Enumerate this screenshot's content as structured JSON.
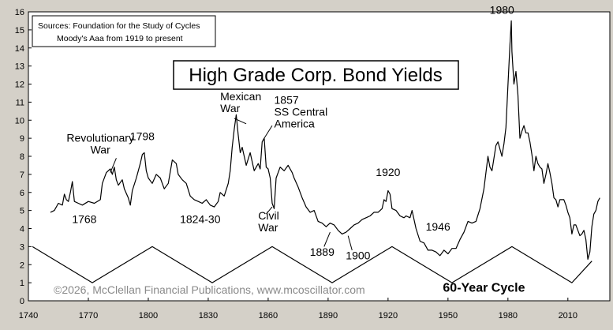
{
  "chart_data": {
    "type": "line",
    "title": "High Grade Corp. Bond Yields",
    "sources_box": {
      "line1": "Sources: Foundation for the Study of Cycles",
      "line2": "Moody's Aaa from 1919 to present"
    },
    "copyright": "©2026, McClellan Financial Publications, www.mcoscillator.com",
    "xlim": [
      1740,
      2031
    ],
    "ylim": [
      0,
      16
    ],
    "x_ticks": [
      1740,
      1770,
      1800,
      1830,
      1860,
      1890,
      1920,
      1950,
      1980,
      2010
    ],
    "y_ticks": [
      0,
      1,
      2,
      3,
      4,
      5,
      6,
      7,
      8,
      9,
      10,
      11,
      12,
      13,
      14,
      15,
      16
    ],
    "grid": false,
    "series": [
      {
        "color": "#000000",
        "points": [
          [
            1751,
            4.9
          ],
          [
            1753,
            5.0
          ],
          [
            1755,
            5.4
          ],
          [
            1757,
            5.3
          ],
          [
            1758,
            5.9
          ],
          [
            1759,
            5.6
          ],
          [
            1760,
            5.5
          ],
          [
            1761,
            6.0
          ],
          [
            1762,
            6.6
          ],
          [
            1763,
            5.5
          ],
          [
            1765,
            5.4
          ],
          [
            1767,
            5.3
          ],
          [
            1770,
            5.5
          ],
          [
            1773,
            5.4
          ],
          [
            1776,
            5.6
          ],
          [
            1777,
            6.5
          ],
          [
            1779,
            7.1
          ],
          [
            1781,
            7.3
          ],
          [
            1782,
            7.0
          ],
          [
            1783,
            7.4
          ],
          [
            1784,
            6.7
          ],
          [
            1785,
            6.4
          ],
          [
            1787,
            6.7
          ],
          [
            1788,
            6.2
          ],
          [
            1790,
            5.7
          ],
          [
            1791,
            5.3
          ],
          [
            1792,
            6.1
          ],
          [
            1794,
            6.8
          ],
          [
            1796,
            7.6
          ],
          [
            1797,
            8.1
          ],
          [
            1798,
            8.2
          ],
          [
            1799,
            7.2
          ],
          [
            1800,
            6.8
          ],
          [
            1802,
            6.5
          ],
          [
            1804,
            7.0
          ],
          [
            1806,
            6.8
          ],
          [
            1808,
            6.2
          ],
          [
            1810,
            6.5
          ],
          [
            1812,
            7.8
          ],
          [
            1814,
            7.6
          ],
          [
            1815,
            7.0
          ],
          [
            1817,
            6.7
          ],
          [
            1819,
            6.5
          ],
          [
            1821,
            5.8
          ],
          [
            1823,
            5.6
          ],
          [
            1825,
            5.5
          ],
          [
            1827,
            5.4
          ],
          [
            1829,
            5.6
          ],
          [
            1831,
            5.3
          ],
          [
            1833,
            5.2
          ],
          [
            1835,
            5.5
          ],
          [
            1836,
            6.0
          ],
          [
            1838,
            5.8
          ],
          [
            1840,
            6.5
          ],
          [
            1841,
            7.2
          ],
          [
            1842,
            8.5
          ],
          [
            1843,
            9.5
          ],
          [
            1844,
            10.3
          ],
          [
            1845,
            9.2
          ],
          [
            1846,
            8.2
          ],
          [
            1847,
            8.5
          ],
          [
            1849,
            7.5
          ],
          [
            1851,
            8.2
          ],
          [
            1853,
            7.2
          ],
          [
            1855,
            7.6
          ],
          [
            1856,
            7.3
          ],
          [
            1857,
            8.8
          ],
          [
            1858,
            9.0
          ],
          [
            1859,
            7.4
          ],
          [
            1860,
            7.3
          ],
          [
            1861,
            6.8
          ],
          [
            1862,
            5.4
          ],
          [
            1863,
            5.1
          ],
          [
            1864,
            6.8
          ],
          [
            1866,
            7.4
          ],
          [
            1868,
            7.2
          ],
          [
            1870,
            7.5
          ],
          [
            1872,
            7.1
          ],
          [
            1873,
            6.8
          ],
          [
            1875,
            6.3
          ],
          [
            1877,
            5.7
          ],
          [
            1879,
            5.2
          ],
          [
            1881,
            4.9
          ],
          [
            1883,
            5.0
          ],
          [
            1885,
            4.4
          ],
          [
            1887,
            4.3
          ],
          [
            1889,
            4.1
          ],
          [
            1891,
            4.3
          ],
          [
            1893,
            4.2
          ],
          [
            1895,
            3.9
          ],
          [
            1897,
            3.7
          ],
          [
            1899,
            3.8
          ],
          [
            1901,
            4.0
          ],
          [
            1903,
            4.2
          ],
          [
            1905,
            4.3
          ],
          [
            1907,
            4.5
          ],
          [
            1909,
            4.6
          ],
          [
            1911,
            4.7
          ],
          [
            1913,
            4.9
          ],
          [
            1915,
            4.9
          ],
          [
            1917,
            5.1
          ],
          [
            1918,
            5.6
          ],
          [
            1919,
            5.5
          ],
          [
            1920,
            6.1
          ],
          [
            1921,
            5.9
          ],
          [
            1922,
            5.1
          ],
          [
            1924,
            5.0
          ],
          [
            1926,
            4.7
          ],
          [
            1928,
            4.6
          ],
          [
            1929,
            4.7
          ],
          [
            1931,
            4.6
          ],
          [
            1932,
            5.0
          ],
          [
            1934,
            4.0
          ],
          [
            1936,
            3.3
          ],
          [
            1938,
            3.2
          ],
          [
            1940,
            2.8
          ],
          [
            1942,
            2.8
          ],
          [
            1944,
            2.7
          ],
          [
            1946,
            2.5
          ],
          [
            1948,
            2.8
          ],
          [
            1950,
            2.6
          ],
          [
            1952,
            2.9
          ],
          [
            1954,
            2.9
          ],
          [
            1956,
            3.4
          ],
          [
            1958,
            3.8
          ],
          [
            1960,
            4.4
          ],
          [
            1962,
            4.3
          ],
          [
            1964,
            4.4
          ],
          [
            1966,
            5.1
          ],
          [
            1968,
            6.2
          ],
          [
            1970,
            8.0
          ],
          [
            1971,
            7.4
          ],
          [
            1972,
            7.2
          ],
          [
            1974,
            8.6
          ],
          [
            1975,
            8.8
          ],
          [
            1977,
            8.0
          ],
          [
            1978,
            8.7
          ],
          [
            1979,
            9.6
          ],
          [
            1980,
            11.9
          ],
          [
            1981,
            14.2
          ],
          [
            1981.7,
            15.5
          ],
          [
            1982,
            13.8
          ],
          [
            1983,
            12.0
          ],
          [
            1984,
            12.7
          ],
          [
            1985,
            11.4
          ],
          [
            1986,
            9.0
          ],
          [
            1987,
            9.4
          ],
          [
            1988,
            9.7
          ],
          [
            1989,
            9.3
          ],
          [
            1990,
            9.3
          ],
          [
            1991,
            8.8
          ],
          [
            1992,
            8.1
          ],
          [
            1993,
            7.2
          ],
          [
            1994,
            8.0
          ],
          [
            1995,
            7.6
          ],
          [
            1996,
            7.4
          ],
          [
            1997,
            7.3
          ],
          [
            1998,
            6.5
          ],
          [
            1999,
            7.0
          ],
          [
            2000,
            7.6
          ],
          [
            2001,
            7.1
          ],
          [
            2002,
            6.5
          ],
          [
            2003,
            5.7
          ],
          [
            2004,
            5.6
          ],
          [
            2005,
            5.2
          ],
          [
            2006,
            5.6
          ],
          [
            2007,
            5.6
          ],
          [
            2008,
            5.6
          ],
          [
            2009,
            5.3
          ],
          [
            2010,
            4.9
          ],
          [
            2011,
            4.6
          ],
          [
            2012,
            3.7
          ],
          [
            2013,
            4.2
          ],
          [
            2014,
            4.2
          ],
          [
            2015,
            3.9
          ],
          [
            2016,
            3.6
          ],
          [
            2017,
            3.7
          ],
          [
            2018,
            3.9
          ],
          [
            2019,
            3.4
          ],
          [
            2020,
            2.3
          ],
          [
            2021,
            2.7
          ],
          [
            2022,
            4.1
          ],
          [
            2023,
            4.8
          ],
          [
            2024,
            5.0
          ],
          [
            2025,
            5.5
          ],
          [
            2026,
            5.7
          ]
        ]
      },
      {
        "name": "60-Year Cycle",
        "color": "#000000",
        "points": [
          [
            1742,
            3
          ],
          [
            1772,
            1
          ],
          [
            1802,
            3
          ],
          [
            1832,
            1
          ],
          [
            1862,
            3
          ],
          [
            1892,
            1
          ],
          [
            1922,
            3
          ],
          [
            1952,
            1
          ],
          [
            1982,
            3
          ],
          [
            2012,
            1
          ],
          [
            2022,
            2.2
          ]
        ]
      }
    ],
    "annotations": [
      {
        "id": "rev-war",
        "lines": [
          "Revolutionary",
          "War"
        ],
        "x": 1776,
        "y": 8.8,
        "align": "middle",
        "leader": [
          [
            1781,
            7.1
          ],
          [
            1784,
            7.9
          ]
        ]
      },
      {
        "id": "ann-1798",
        "lines": [
          "1798"
        ],
        "x": 1797,
        "y": 8.9,
        "align": "middle"
      },
      {
        "id": "ann-1768",
        "lines": [
          "1768"
        ],
        "x": 1768,
        "y": 4.3,
        "align": "middle"
      },
      {
        "id": "ann-1824-30",
        "lines": [
          "1824-30"
        ],
        "x": 1826,
        "y": 4.3,
        "align": "middle"
      },
      {
        "id": "mexican-war",
        "lines": [
          "Mexican",
          "War"
        ],
        "x": 1836,
        "y": 11.1,
        "align": "start",
        "leader": [
          [
            1843,
            10.1
          ],
          [
            1849,
            9.8
          ]
        ]
      },
      {
        "id": "ss-central",
        "lines": [
          "1857",
          "SS Central",
          "America"
        ],
        "x": 1863,
        "y": 10.9,
        "align": "start",
        "leader": [
          [
            1858,
            9.0
          ],
          [
            1862,
            9.7
          ]
        ]
      },
      {
        "id": "civil-war",
        "lines": [
          "Civil",
          "War"
        ],
        "x": 1855,
        "y": 4.5,
        "align": "start",
        "leader": [
          [
            1859,
            4.8
          ],
          [
            1862,
            5.2
          ]
        ]
      },
      {
        "id": "ann-1889",
        "lines": [
          "1889"
        ],
        "x": 1887,
        "y": 2.5,
        "align": "middle",
        "leader": [
          [
            1888,
            3.0
          ],
          [
            1891,
            3.8
          ]
        ]
      },
      {
        "id": "ann-1900",
        "lines": [
          "1900"
        ],
        "x": 1905,
        "y": 2.3,
        "align": "middle",
        "leader": [
          [
            1902,
            2.8
          ],
          [
            1900,
            3.6
          ]
        ]
      },
      {
        "id": "ann-1920",
        "lines": [
          "1920"
        ],
        "x": 1920,
        "y": 6.9,
        "align": "middle"
      },
      {
        "id": "ann-1946",
        "lines": [
          "1946"
        ],
        "x": 1945,
        "y": 3.9,
        "align": "middle"
      },
      {
        "id": "ann-1980",
        "lines": [
          "1980"
        ],
        "x": 1977,
        "y": 15.9,
        "align": "middle"
      },
      {
        "id": "cycle-label",
        "lines": [
          "60-Year Cycle"
        ],
        "x": 1968,
        "y": 0.5,
        "align": "middle",
        "bold": true
      }
    ]
  }
}
